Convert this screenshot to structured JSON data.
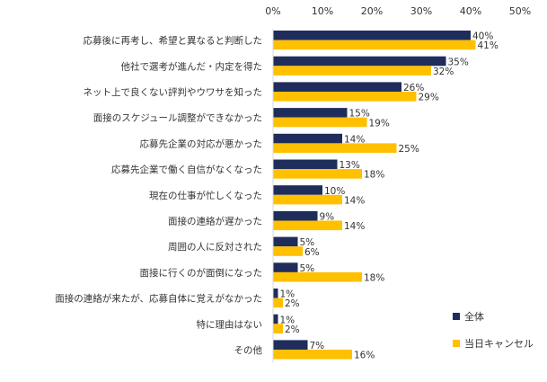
{
  "chart_data": {
    "type": "bar",
    "orientation": "horizontal",
    "x_ticks": [
      "0%",
      "10%",
      "20%",
      "30%",
      "40%",
      "50%"
    ],
    "xlim": [
      0,
      50
    ],
    "grid": false,
    "legend_position": "bottom-right",
    "unit": "%",
    "categories": [
      "応募後に再考し、希望と異なると判断した",
      "他社で選考が進んだ・内定を得た",
      "ネット上で良くない評判やウワサを知った",
      "面接のスケジュール調整ができなかった",
      "応募先企業の対応が悪かった",
      "応募先企業で働く自信がなくなった",
      "現在の仕事が忙しくなった",
      "面接の連絡が遅かった",
      "周囲の人に反対された",
      "面接に行くのが面倒になった",
      "面接の連絡が来たが、応募自体に覚えがなかった",
      "特に理由はない",
      "その他"
    ],
    "series": [
      {
        "name": "全体",
        "color": "#1f2d5c",
        "values": [
          40,
          35,
          26,
          15,
          14,
          13,
          10,
          9,
          5,
          5,
          1,
          1,
          7
        ]
      },
      {
        "name": "当日キャンセル",
        "color": "#ffc000",
        "values": [
          41,
          32,
          29,
          19,
          25,
          18,
          14,
          14,
          6,
          18,
          2,
          2,
          16
        ]
      }
    ]
  }
}
